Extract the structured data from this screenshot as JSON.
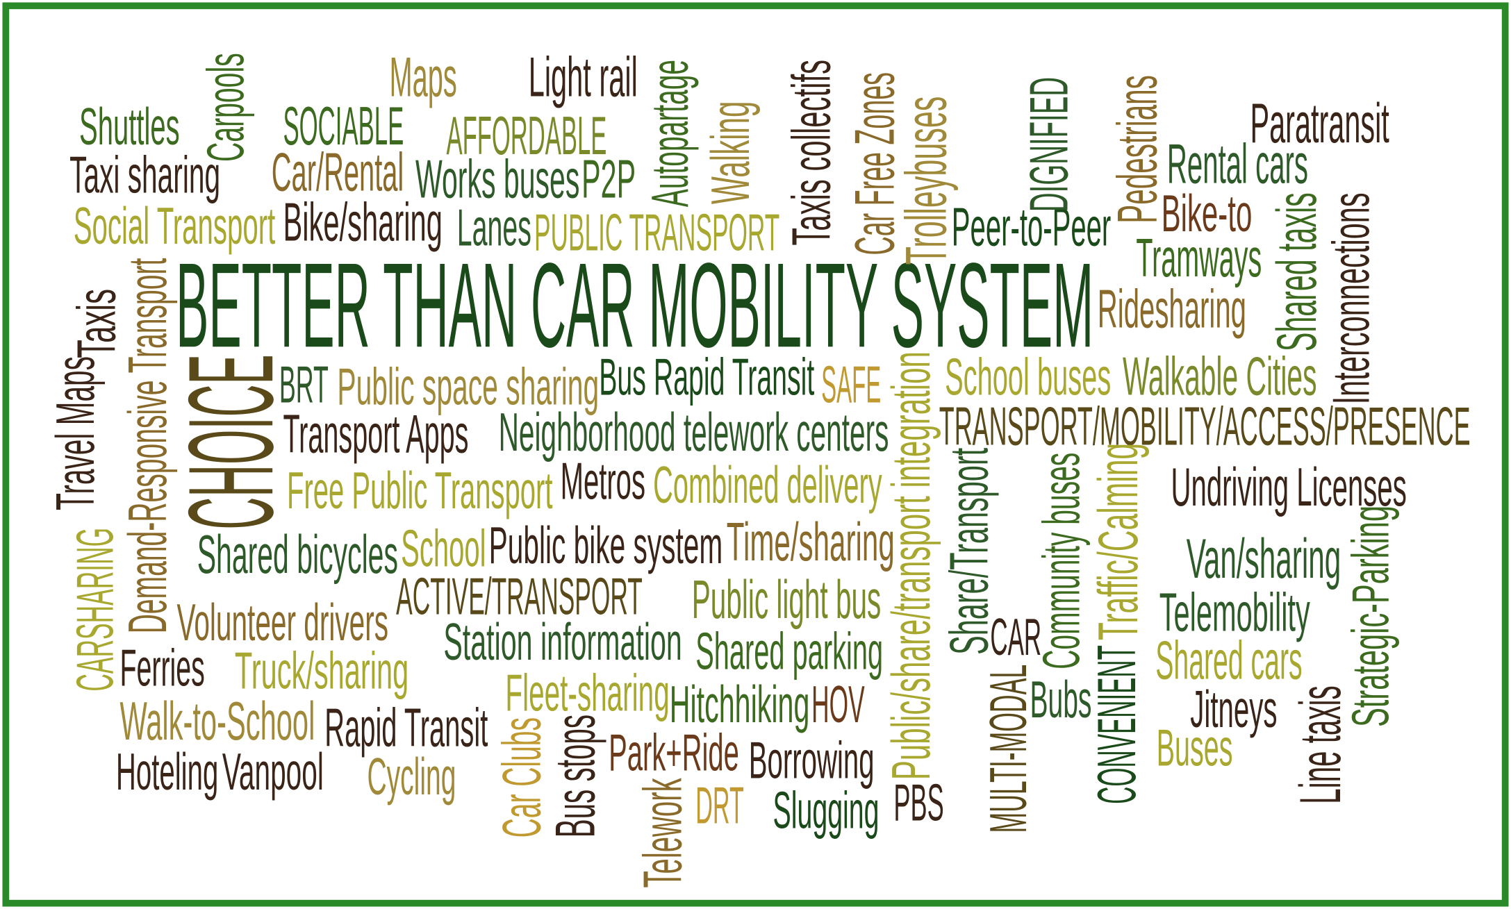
{
  "words": [
    "Maps",
    "Light rail",
    "Shuttles",
    "SOCIABLE",
    "AFFORDABLE",
    "Paratransit",
    "Taxi sharing",
    "Car/Rental",
    "Works buses",
    "P2P",
    "Rental cars",
    "Social Transport",
    "Bike/sharing",
    "Lanes",
    "PUBLIC TRANSPORT",
    "Peer-to-Peer",
    "Bike-to",
    "Tramways",
    "BETTER THAN CAR MOBILITY SYSTEM",
    "Ridesharing",
    "BRT",
    "Public space sharing",
    "Bus Rapid Transit",
    "SAFE",
    "School buses",
    "Walkable Cities",
    "Transport Apps",
    "Neighborhood telework centers",
    "TRANSPORT/MOBILITY/ACCESS/PRESENCE",
    "Free Public Transport",
    "Metros",
    "Combined delivery",
    "Undriving Licenses",
    "Shared bicycles",
    "School",
    "Public bike system",
    "Time/sharing",
    "Van/sharing",
    "ACTIVE/TRANSPORT",
    "Public light bus",
    "Volunteer drivers",
    "Telemobility",
    "Station information",
    "Shared parking",
    "CAR",
    "Ferries",
    "Truck/sharing",
    "Shared cars",
    "Fleet-sharing",
    "Hitchhiking",
    "HOV",
    "Bubs",
    "Jitneys",
    "Walk-to-School",
    "Rapid Transit",
    "Park+Ride",
    "Borrowing",
    "Buses",
    "Hoteling",
    "Vanpool",
    "Cycling",
    "DRT",
    "Slugging",
    "PBS",
    "Carpools",
    "Autopartage",
    "Walking",
    "Taxis collectifs",
    "Car Free Zones",
    "Trolleybuses",
    "DIGNIFIED",
    "Pedestrians",
    "Shared taxis",
    "Interconnections",
    "Taxis",
    "Demand-Responsive Transport",
    "CHOICE",
    "Travel Maps",
    "Public/share/transport integration",
    "Share/Transport",
    "Community buses",
    "Traffic/Calming",
    "CARSHARING",
    "Strategic-Parking",
    "MULTI-MODAL",
    "CONVENIENT",
    "Line taxis",
    "Car Clubs",
    "Bus stops",
    "Telework"
  ]
}
